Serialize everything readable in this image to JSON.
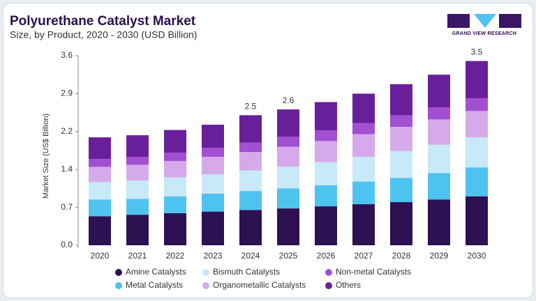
{
  "chart_data": {
    "type": "stacked-bar",
    "title": "Polyurethane Catalyst Market",
    "subtitle": "Size, by Product, 2020 - 2030 (USD Billion)",
    "y_label": "Market Size (US$ Billion)",
    "categories": [
      "2020",
      "2021",
      "2022",
      "2023",
      "2024",
      "2025",
      "2026",
      "2027",
      "2028",
      "2029",
      "2030"
    ],
    "series": [
      {
        "name": "Amine Catalysts",
        "color": "#2d1152",
        "values": [
          0.55,
          0.58,
          0.61,
          0.64,
          0.67,
          0.7,
          0.74,
          0.78,
          0.82,
          0.87,
          0.93
        ]
      },
      {
        "name": "Metal Catalysts",
        "color": "#4fc3f0",
        "values": [
          0.32,
          0.3,
          0.32,
          0.34,
          0.36,
          0.38,
          0.4,
          0.43,
          0.46,
          0.5,
          0.55
        ]
      },
      {
        "name": "Bismuth Catalysts",
        "color": "#c8e9f8",
        "values": [
          0.33,
          0.35,
          0.36,
          0.37,
          0.39,
          0.41,
          0.44,
          0.47,
          0.51,
          0.54,
          0.57
        ]
      },
      {
        "name": "Organometallic Catalysts",
        "color": "#d6aaea",
        "values": [
          0.29,
          0.3,
          0.31,
          0.33,
          0.35,
          0.38,
          0.4,
          0.43,
          0.46,
          0.48,
          0.5
        ]
      },
      {
        "name": "Non-metal Catalysts",
        "color": "#a24fd2",
        "values": [
          0.15,
          0.15,
          0.16,
          0.17,
          0.18,
          0.19,
          0.2,
          0.21,
          0.22,
          0.23,
          0.24
        ]
      },
      {
        "name": "Others",
        "color": "#6a1f9a",
        "values": [
          0.41,
          0.41,
          0.43,
          0.44,
          0.52,
          0.52,
          0.54,
          0.56,
          0.59,
          0.62,
          0.71
        ]
      }
    ],
    "totals": [
      null,
      null,
      null,
      null,
      2.5,
      2.6,
      null,
      null,
      null,
      null,
      3.5
    ],
    "ylim": [
      0,
      3.6
    ],
    "yticks": [
      {
        "value": 0,
        "label": "0.0"
      },
      {
        "value": 0.72,
        "label": "0.7"
      },
      {
        "value": 1.44,
        "label": "1.4"
      },
      {
        "value": 2.16,
        "label": "2.2"
      },
      {
        "value": 2.88,
        "label": "2.9"
      },
      3.6
    ],
    "grid": false
  },
  "logo_text": "GRAND VIEW RESEARCH"
}
